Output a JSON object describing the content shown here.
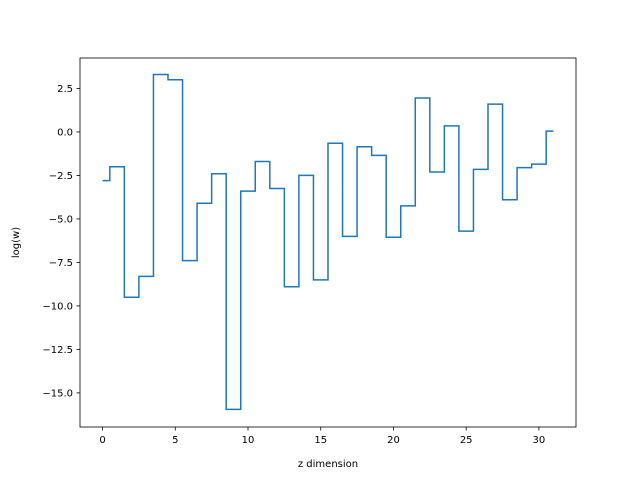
{
  "chart_data": {
    "type": "line",
    "drawstyle": "steps-mid",
    "xlabel": "z dimension",
    "ylabel": "log(w)",
    "xlim": [
      -1.55,
      32.55
    ],
    "ylim": [
      -16.96,
      4.25
    ],
    "xticks": [
      0,
      5,
      10,
      15,
      20,
      25,
      30
    ],
    "xtick_labels": [
      "0",
      "5",
      "10",
      "15",
      "20",
      "25",
      "30"
    ],
    "yticks": [
      2.5,
      0.0,
      -2.5,
      -5.0,
      -7.5,
      -10.0,
      -12.5,
      -15.0
    ],
    "ytick_labels": [
      "2.5",
      "0.0",
      "−2.5",
      "−5.0",
      "−7.5",
      "−10.0",
      "−12.5",
      "−15.0"
    ],
    "grid": false,
    "series": [
      {
        "color": "#1f77b4",
        "x": [
          0,
          1,
          2,
          3,
          4,
          5,
          6,
          7,
          8,
          9,
          10,
          11,
          12,
          13,
          14,
          15,
          16,
          17,
          18,
          19,
          20,
          21,
          22,
          23,
          24,
          25,
          26,
          27,
          28,
          29,
          30,
          31
        ],
        "y": [
          -2.8,
          -2.0,
          -9.5,
          -8.3,
          3.3,
          3.0,
          -7.4,
          -4.1,
          -2.4,
          -15.95,
          -3.4,
          -1.7,
          -3.25,
          -8.9,
          -2.5,
          -8.5,
          -0.65,
          -6.0,
          -0.85,
          -1.35,
          -6.05,
          -4.25,
          1.95,
          -2.3,
          0.35,
          -5.7,
          -2.15,
          1.6,
          -3.9,
          -2.05,
          -1.85,
          0.05
        ]
      }
    ]
  }
}
